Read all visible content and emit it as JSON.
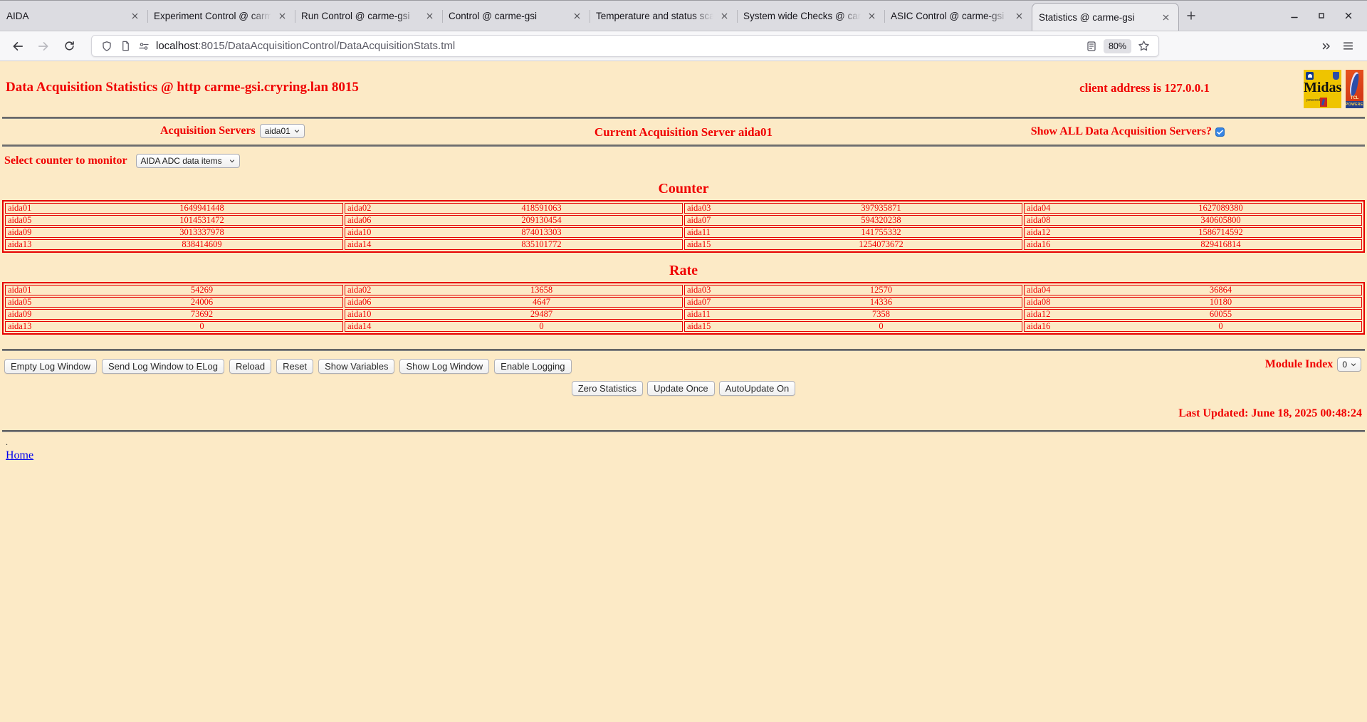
{
  "browser": {
    "tabs": [
      {
        "label": "AIDA",
        "active": false
      },
      {
        "label": "Experiment Control @ carme",
        "active": false
      },
      {
        "label": "Run Control @ carme-gsi",
        "active": false
      },
      {
        "label": "Control @ carme-gsi",
        "active": false
      },
      {
        "label": "Temperature and status scan",
        "active": false
      },
      {
        "label": "System wide Checks @ carm",
        "active": false
      },
      {
        "label": "ASIC Control @ carme-gsi",
        "active": false
      },
      {
        "label": "Statistics @ carme-gsi",
        "active": true
      }
    ],
    "url": {
      "host": "localhost",
      "rest": ":8015/DataAcquisitionControl/DataAcquisitionStats.tml"
    },
    "zoom_level": "80%",
    "icons": [
      "shield-icon",
      "page-icon",
      "permissions-icon",
      "reader-icon",
      "bookmark-star-icon",
      "overflow-chevrons-icon",
      "menu-icon"
    ]
  },
  "page": {
    "title": "Data Acquisition Statistics @ http carme-gsi.cryring.lan 8015",
    "client_address": "client address is 127.0.0.1",
    "acquisition_servers_label": "Acquisition Servers",
    "acquisition_servers_value": "aida01",
    "current_server": "Current Acquisition Server aida01",
    "show_all_label": "Show ALL Data Acquisition Servers?",
    "show_all_checked": true,
    "counter_select_label": "Select counter to monitor",
    "counter_select_value": "AIDA ADC data items",
    "counter_heading": "Counter",
    "counter_rows": [
      [
        [
          "aida01",
          "1649941448"
        ],
        [
          "aida02",
          "418591063"
        ],
        [
          "aida03",
          "397935871"
        ],
        [
          "aida04",
          "1627089380"
        ]
      ],
      [
        [
          "aida05",
          "1014531472"
        ],
        [
          "aida06",
          "209130454"
        ],
        [
          "aida07",
          "594320238"
        ],
        [
          "aida08",
          "340605800"
        ]
      ],
      [
        [
          "aida09",
          "3013337978"
        ],
        [
          "aida10",
          "874013303"
        ],
        [
          "aida11",
          "141755332"
        ],
        [
          "aida12",
          "1586714592"
        ]
      ],
      [
        [
          "aida13",
          "838414609"
        ],
        [
          "aida14",
          "835101772"
        ],
        [
          "aida15",
          "1254073672"
        ],
        [
          "aida16",
          "829416814"
        ]
      ]
    ],
    "rate_heading": "Rate",
    "rate_rows": [
      [
        [
          "aida01",
          "54269"
        ],
        [
          "aida02",
          "13658"
        ],
        [
          "aida03",
          "12570"
        ],
        [
          "aida04",
          "36864"
        ]
      ],
      [
        [
          "aida05",
          "24006"
        ],
        [
          "aida06",
          "4647"
        ],
        [
          "aida07",
          "14336"
        ],
        [
          "aida08",
          "10180"
        ]
      ],
      [
        [
          "aida09",
          "73692"
        ],
        [
          "aida10",
          "29487"
        ],
        [
          "aida11",
          "7358"
        ],
        [
          "aida12",
          "60055"
        ]
      ],
      [
        [
          "aida13",
          "0"
        ],
        [
          "aida14",
          "0"
        ],
        [
          "aida15",
          "0"
        ],
        [
          "aida16",
          "0"
        ]
      ]
    ],
    "log_buttons": [
      "Empty Log Window",
      "Send Log Window to ELog",
      "Reload",
      "Reset",
      "Show Variables",
      "Show Log Window",
      "Enable Logging"
    ],
    "module_index_label": "Module Index",
    "module_index_value": "0",
    "action_buttons": [
      "Zero Statistics",
      "Update Once",
      "AutoUpdate On"
    ],
    "last_updated": "Last Updated: June 18, 2025 00:48:24",
    "dot": ".",
    "home_link": "Home",
    "logos": {
      "midas_word": "Midas",
      "midas_powered": "powered by",
      "tcl_word": "TCL",
      "tcl_strip": "POWERED"
    }
  },
  "colors": {
    "page_background": "#fceac6",
    "accent_red": "#f00000",
    "table_border_red": "#e60000",
    "link_blue": "#0000ee",
    "checkbox_blue": "#3584e4"
  }
}
